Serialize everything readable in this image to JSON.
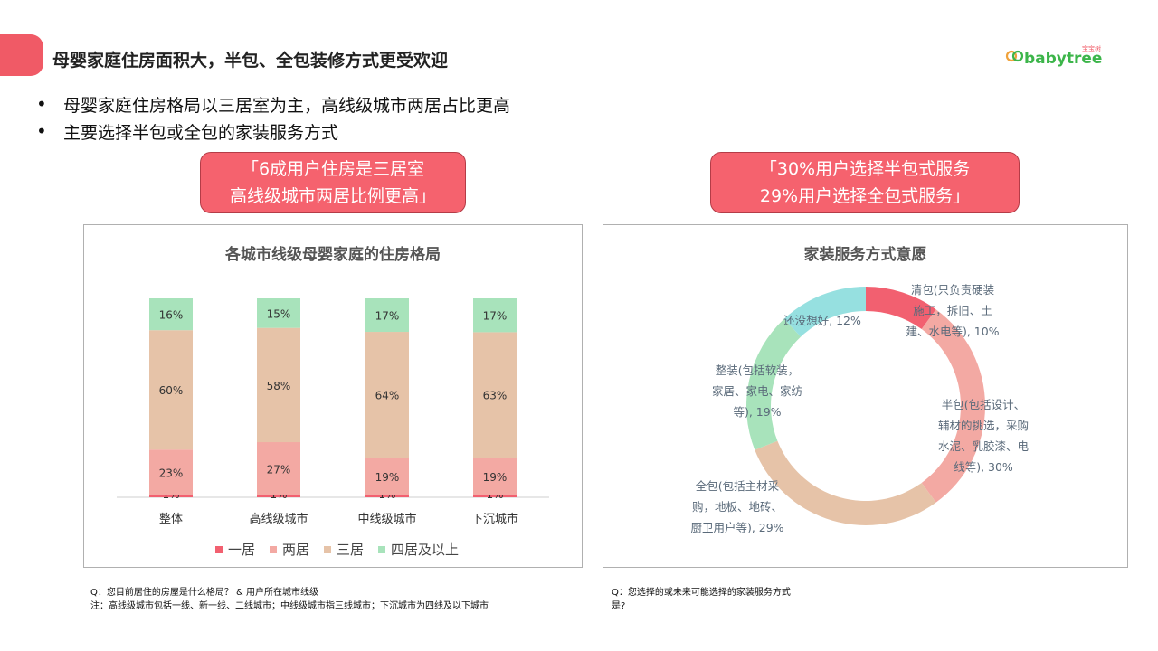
{
  "header": {
    "title": "母婴家庭住房面积大，半包、全包装修方式更受欢迎",
    "logo_text": "babytree",
    "logo_sub": "宝宝树"
  },
  "bullets": [
    "母婴家庭住房格局以三居室为主，高线级城市两居占比更高",
    "主要选择半包或全包的家装服务方式"
  ],
  "callouts": {
    "left": [
      "「6成用户住房是三居室",
      "高线级城市两居比例更高」"
    ],
    "right": [
      "「30%用户选择半包式服务",
      "29%用户选择全包式服务」"
    ]
  },
  "colors": {
    "accent": "#f05a66",
    "one_room": "#f26070",
    "two_room": "#f3a9a3",
    "three_room": "#e6c3a8",
    "four_room": "#a8e3bb",
    "unsure": "#96e0e0"
  },
  "chart_data": [
    {
      "type": "bar",
      "stacked": true,
      "title": "各城市线级母婴家庭的住房格局",
      "categories": [
        "整体",
        "高线级城市",
        "中线级城市",
        "下沉城市"
      ],
      "series": [
        {
          "name": "一居",
          "values": [
            1,
            1,
            1,
            1
          ],
          "labels": [
            "1%",
            "1%",
            "1%",
            "1%"
          ]
        },
        {
          "name": "两居",
          "values": [
            23,
            27,
            19,
            19
          ],
          "labels": [
            "23%",
            "27%",
            "19%",
            "19%"
          ]
        },
        {
          "name": "三居",
          "values": [
            60,
            58,
            64,
            63
          ],
          "labels": [
            "60%",
            "58%",
            "64%",
            "63%"
          ]
        },
        {
          "name": "四居及以上",
          "values": [
            16,
            15,
            17,
            17
          ],
          "labels": [
            "16%",
            "15%",
            "17%",
            "17%"
          ]
        }
      ],
      "ylim": [
        0,
        100
      ],
      "grid": false,
      "legend": "bottom"
    },
    {
      "type": "pie",
      "donut": true,
      "title": "家装服务方式意愿",
      "slices": [
        {
          "label": "清包(只负责硬装施工，拆旧、土建、水电等), 10%",
          "value": 10,
          "lines": [
            "清包(只负责硬装",
            "施工，拆旧、土",
            "建、水电等), 10%"
          ]
        },
        {
          "label": "半包(包括设计、辅材的挑选，采购水泥、乳胶漆、电线等), 30%",
          "value": 30,
          "lines": [
            "半包(包括设计、",
            "辅材的挑选，采购",
            "水泥、乳胶漆、电",
            "线等), 30%"
          ]
        },
        {
          "label": "全包(包括主材采购，地板、地砖、厨卫用户等), 29%",
          "value": 29,
          "lines": [
            "全包(包括主材采",
            "购，地板、地砖、",
            "厨卫用户等), 29%"
          ]
        },
        {
          "label": "整装(包括软装，家居、家电、家纺等), 19%",
          "value": 19,
          "lines": [
            "整装(包括软装，",
            "家居、家电、家纺",
            "等), 19%"
          ]
        },
        {
          "label": "还没想好, 12%",
          "value": 12,
          "lines": [
            "还没想好, 12%"
          ]
        }
      ],
      "legend": "none"
    }
  ],
  "footnotes": {
    "left": [
      "Q：您目前居住的房屋是什么格局？ & 用户所在城市线级",
      "注：高线级城市包括一线、新一线、二线城市；中线级城市指三线城市；下沉城市为四线及以下城市"
    ],
    "right": [
      "Q：您选择的或未来可能选择的家装服务方式",
      "是?"
    ]
  }
}
